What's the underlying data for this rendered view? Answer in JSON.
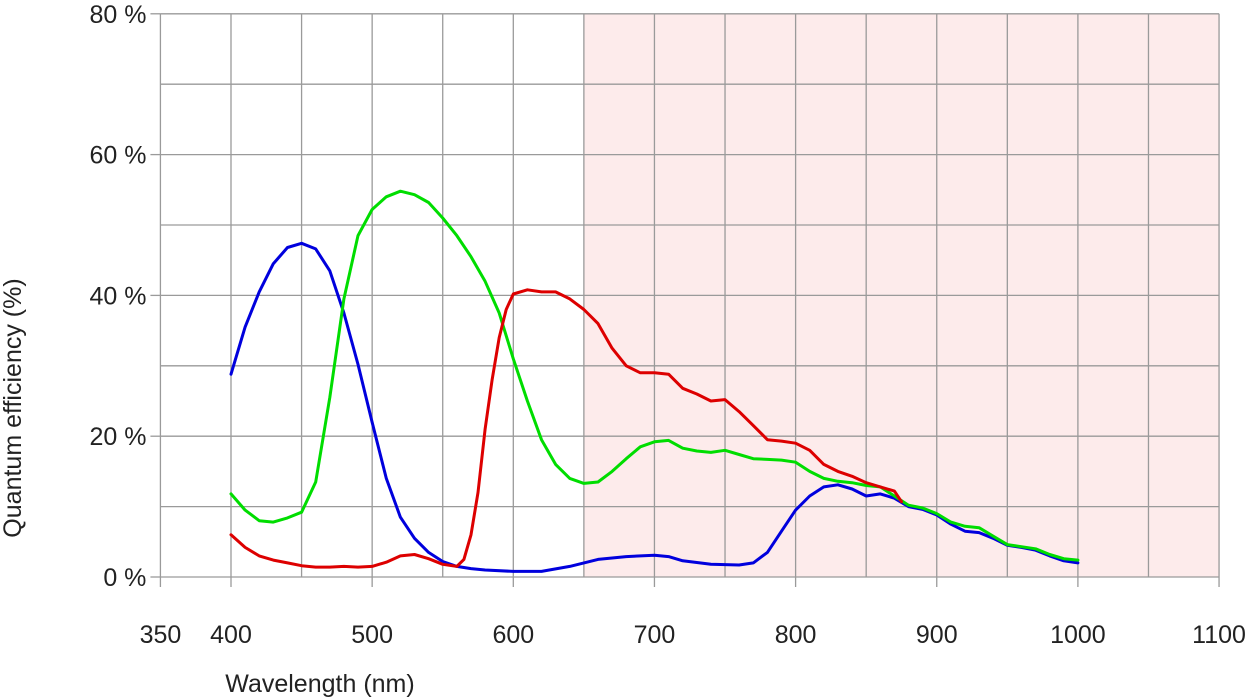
{
  "chart_data": {
    "type": "line",
    "title": "",
    "xlabel": "Wavelength (nm)",
    "ylabel": "Quantum efficiency (%)",
    "xlim": [
      350,
      1100
    ],
    "ylim": [
      0,
      80
    ],
    "x_ticks": [
      {
        "value": 350,
        "label": "350"
      },
      {
        "value": 400,
        "label": "400"
      },
      {
        "value": 500,
        "label": "500"
      },
      {
        "value": 600,
        "label": "600"
      },
      {
        "value": 700,
        "label": "700"
      },
      {
        "value": 800,
        "label": "800"
      },
      {
        "value": 900,
        "label": "900"
      },
      {
        "value": 1000,
        "label": "1000"
      },
      {
        "value": 1100,
        "label": "1100"
      }
    ],
    "y_ticks": [
      {
        "value": 0,
        "label": "0 %"
      },
      {
        "value": 20,
        "label": "20 %"
      },
      {
        "value": 40,
        "label": "40 %"
      },
      {
        "value": 60,
        "label": "60 %"
      },
      {
        "value": 80,
        "label": "80 %"
      }
    ],
    "grid": true,
    "shaded_region": {
      "x_from": 650,
      "x_to": 1100,
      "color": "#fdebeb"
    },
    "series": [
      {
        "color": "#0000dd",
        "x": [
          400,
          410,
          420,
          430,
          440,
          450,
          460,
          470,
          480,
          490,
          500,
          510,
          520,
          530,
          540,
          550,
          560,
          570,
          580,
          600,
          620,
          640,
          660,
          680,
          700,
          710,
          720,
          740,
          760,
          770,
          780,
          790,
          800,
          810,
          820,
          830,
          840,
          850,
          860,
          870,
          880,
          890,
          900,
          910,
          920,
          930,
          940,
          950,
          960,
          970,
          980,
          990,
          1000
        ],
        "values": [
          28.8,
          35.5,
          40.5,
          44.5,
          46.8,
          47.4,
          46.6,
          43.5,
          37.5,
          30.2,
          22,
          14,
          8.5,
          5.5,
          3.5,
          2.2,
          1.5,
          1.2,
          1.0,
          0.8,
          0.8,
          1.5,
          2.5,
          2.9,
          3.1,
          2.9,
          2.3,
          1.8,
          1.7,
          2.0,
          3.5,
          6.5,
          9.5,
          11.5,
          12.8,
          13.1,
          12.5,
          11.5,
          11.8,
          11.2,
          10,
          9.6,
          8.8,
          7.5,
          6.5,
          6.3,
          5.5,
          4.5,
          4.2,
          3.8,
          3.0,
          2.3,
          2.0
        ]
      },
      {
        "color": "#00dd00",
        "x": [
          400,
          410,
          420,
          430,
          440,
          450,
          460,
          470,
          480,
          490,
          500,
          510,
          520,
          530,
          540,
          550,
          560,
          570,
          580,
          590,
          600,
          610,
          620,
          630,
          640,
          650,
          660,
          670,
          680,
          690,
          700,
          710,
          720,
          730,
          740,
          750,
          760,
          770,
          780,
          790,
          800,
          810,
          820,
          830,
          840,
          850,
          860,
          870,
          880,
          890,
          900,
          910,
          920,
          930,
          940,
          950,
          960,
          970,
          980,
          990,
          1000
        ],
        "values": [
          11.8,
          9.5,
          8,
          7.8,
          8.4,
          9.2,
          13.5,
          25.5,
          39.5,
          48.5,
          52.2,
          54,
          54.8,
          54.3,
          53.2,
          51,
          48.5,
          45.5,
          42,
          37.5,
          31,
          25,
          19.5,
          16,
          14,
          13.3,
          13.5,
          15,
          16.8,
          18.5,
          19.2,
          19.4,
          18.3,
          17.9,
          17.7,
          18,
          17.4,
          16.8,
          16.7,
          16.6,
          16.3,
          15,
          14,
          13.6,
          13.4,
          13,
          12.8,
          11.5,
          10.2,
          9.8,
          9.0,
          7.8,
          7.2,
          7.0,
          5.8,
          4.6,
          4.3,
          4.0,
          3.2,
          2.6,
          2.4
        ]
      },
      {
        "color": "#dd0000",
        "x": [
          400,
          410,
          420,
          430,
          440,
          450,
          460,
          470,
          480,
          490,
          500,
          510,
          520,
          530,
          540,
          550,
          560,
          565,
          570,
          575,
          580,
          585,
          590,
          595,
          600,
          610,
          620,
          630,
          640,
          650,
          660,
          670,
          680,
          690,
          700,
          710,
          720,
          730,
          740,
          750,
          760,
          770,
          780,
          790,
          800,
          810,
          820,
          830,
          840,
          850,
          860,
          870,
          875
        ],
        "values": [
          6,
          4.2,
          3,
          2.4,
          2,
          1.6,
          1.4,
          1.4,
          1.5,
          1.4,
          1.5,
          2.1,
          3,
          3.2,
          2.6,
          1.8,
          1.5,
          2.5,
          6,
          12,
          21,
          28,
          34,
          38,
          40.2,
          40.8,
          40.5,
          40.5,
          39.5,
          38,
          36,
          32.5,
          30,
          29,
          29,
          28.8,
          26.8,
          26,
          25,
          25.2,
          23.5,
          21.5,
          19.5,
          19.3,
          19,
          18,
          16,
          15,
          14.3,
          13.4,
          12.8,
          12.2,
          10.7
        ]
      }
    ]
  }
}
